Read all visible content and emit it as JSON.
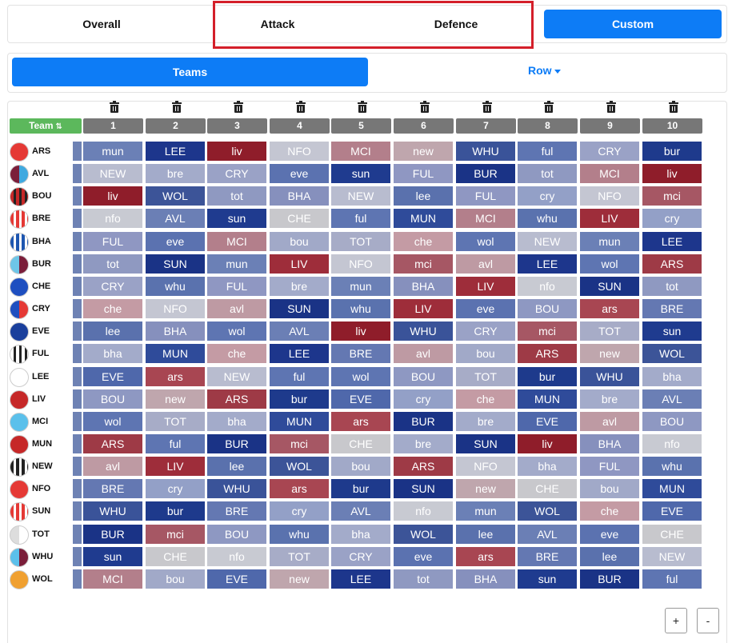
{
  "tabs": {
    "overall": "Overall",
    "attack": "Attack",
    "defence": "Defence",
    "custom": "Custom"
  },
  "subnav": {
    "teams": "Teams",
    "row": "Row"
  },
  "grid": {
    "team_header": "Team",
    "columns": [
      "1",
      "2",
      "3",
      "4",
      "5",
      "6",
      "7",
      "8",
      "9",
      "10"
    ],
    "rows": [
      {
        "team": "ARS",
        "cells": [
          "mun",
          "LEE",
          "liv",
          "NFO",
          "MCI",
          "new",
          "WHU",
          "ful",
          "CRY",
          "bur"
        ]
      },
      {
        "team": "AVL",
        "cells": [
          "NEW",
          "bre",
          "CRY",
          "eve",
          "sun",
          "FUL",
          "BUR",
          "tot",
          "MCI",
          "liv"
        ]
      },
      {
        "team": "BOU",
        "cells": [
          "liv",
          "WOL",
          "tot",
          "BHA",
          "NEW",
          "lee",
          "FUL",
          "cry",
          "NFO",
          "mci"
        ]
      },
      {
        "team": "BRE",
        "cells": [
          "nfo",
          "AVL",
          "sun",
          "CHE",
          "ful",
          "MUN",
          "MCI",
          "whu",
          "LIV",
          "cry"
        ]
      },
      {
        "team": "BHA",
        "cells": [
          "FUL",
          "eve",
          "MCI",
          "bou",
          "TOT",
          "che",
          "wol",
          "NEW",
          "mun",
          "LEE"
        ]
      },
      {
        "team": "BUR",
        "cells": [
          "tot",
          "SUN",
          "mun",
          "LIV",
          "NFO",
          "mci",
          "avl",
          "LEE",
          "wol",
          "ARS"
        ]
      },
      {
        "team": "CHE",
        "cells": [
          "CRY",
          "whu",
          "FUL",
          "bre",
          "mun",
          "BHA",
          "LIV",
          "nfo",
          "SUN",
          "tot"
        ]
      },
      {
        "team": "CRY",
        "cells": [
          "che",
          "NFO",
          "avl",
          "SUN",
          "whu",
          "LIV",
          "eve",
          "BOU",
          "ars",
          "BRE"
        ]
      },
      {
        "team": "EVE",
        "cells": [
          "lee",
          "BHA",
          "wol",
          "AVL",
          "liv",
          "WHU",
          "CRY",
          "mci",
          "TOT",
          "sun"
        ]
      },
      {
        "team": "FUL",
        "cells": [
          "bha",
          "MUN",
          "che",
          "LEE",
          "BRE",
          "avl",
          "bou",
          "ARS",
          "new",
          "WOL"
        ]
      },
      {
        "team": "LEE",
        "cells": [
          "EVE",
          "ars",
          "NEW",
          "ful",
          "wol",
          "BOU",
          "TOT",
          "bur",
          "WHU",
          "bha"
        ]
      },
      {
        "team": "LIV",
        "cells": [
          "BOU",
          "new",
          "ARS",
          "bur",
          "EVE",
          "cry",
          "che",
          "MUN",
          "bre",
          "AVL"
        ]
      },
      {
        "team": "MCI",
        "cells": [
          "wol",
          "TOT",
          "bha",
          "MUN",
          "ars",
          "BUR",
          "bre",
          "EVE",
          "avl",
          "BOU"
        ]
      },
      {
        "team": "MUN",
        "cells": [
          "ARS",
          "ful",
          "BUR",
          "mci",
          "CHE",
          "bre",
          "SUN",
          "liv",
          "BHA",
          "nfo"
        ]
      },
      {
        "team": "NEW",
        "cells": [
          "avl",
          "LIV",
          "lee",
          "WOL",
          "bou",
          "ARS",
          "NFO",
          "bha",
          "FUL",
          "whu"
        ]
      },
      {
        "team": "NFO",
        "cells": [
          "BRE",
          "cry",
          "WHU",
          "ars",
          "bur",
          "SUN",
          "new",
          "CHE",
          "bou",
          "MUN"
        ]
      },
      {
        "team": "SUN",
        "cells": [
          "WHU",
          "bur",
          "BRE",
          "cry",
          "AVL",
          "nfo",
          "mun",
          "WOL",
          "che",
          "EVE"
        ]
      },
      {
        "team": "TOT",
        "cells": [
          "BUR",
          "mci",
          "BOU",
          "whu",
          "bha",
          "WOL",
          "lee",
          "AVL",
          "eve",
          "CHE"
        ]
      },
      {
        "team": "WHU",
        "cells": [
          "sun",
          "CHE",
          "nfo",
          "TOT",
          "CRY",
          "eve",
          "ars",
          "BRE",
          "lee",
          "NEW"
        ]
      },
      {
        "team": "WOL",
        "cells": [
          "MCI",
          "bou",
          "EVE",
          "new",
          "LEE",
          "tot",
          "BHA",
          "sun",
          "BUR",
          "ful"
        ]
      }
    ]
  },
  "zoom": {
    "plus": "+",
    "minus": "-"
  },
  "colors": {
    "accent": "#0d7cf6",
    "team_header": "#5cb85c",
    "column_header": "#777777",
    "highlight": "#d41f2a"
  }
}
